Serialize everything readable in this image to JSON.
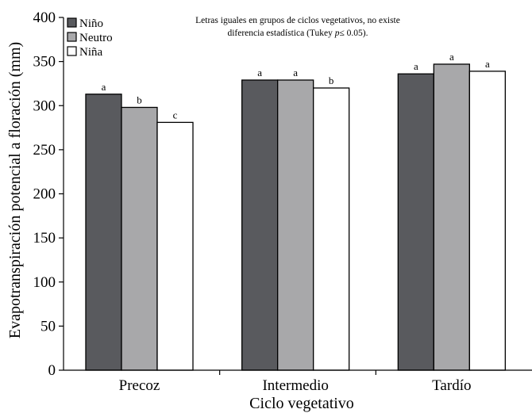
{
  "chart_data": {
    "type": "bar",
    "title": "",
    "xlabel": "Ciclo vegetativo",
    "ylabel": "Evapotranspiración potencial a floración (mm)",
    "ylim": [
      0,
      400
    ],
    "yticks": [
      0,
      50,
      100,
      150,
      200,
      250,
      300,
      350,
      400
    ],
    "grid": false,
    "legend_position": "top-left",
    "categories": [
      "Precoz",
      "Intermedio",
      "Tardío"
    ],
    "series": [
      {
        "name": "Niño",
        "color": "#595a5e",
        "values": [
          313,
          329,
          336
        ],
        "labels": [
          "a",
          "a",
          "a"
        ]
      },
      {
        "name": "Neutro",
        "color": "#a8a8aa",
        "values": [
          298,
          329,
          347
        ],
        "labels": [
          "b",
          "a",
          "a"
        ]
      },
      {
        "name": "Niña",
        "color": "#ffffff",
        "values": [
          281,
          320,
          339
        ],
        "labels": [
          "c",
          "b",
          "a"
        ]
      }
    ],
    "annotation": {
      "line1": "Letras iguales en grupos de ciclos vegetativos, no existe",
      "line2_prefix": "diferencia estadística (Tukey ",
      "line2_italic": "p",
      "line2_suffix": "≤ 0.05)."
    }
  }
}
